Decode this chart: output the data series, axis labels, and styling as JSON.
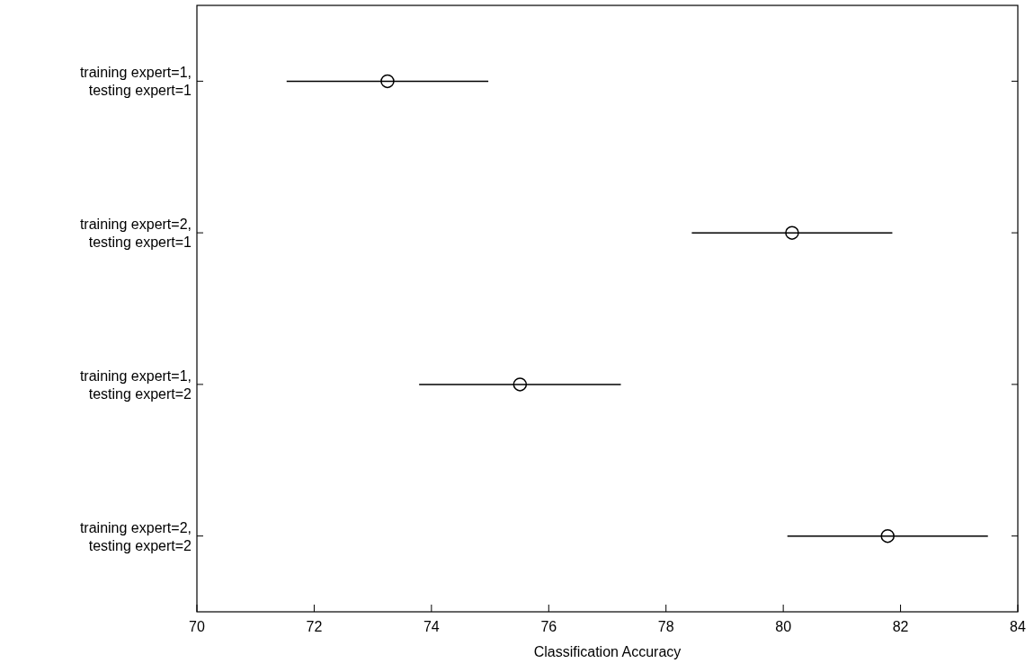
{
  "chart_data": {
    "type": "scatter",
    "orientation": "horizontal",
    "xlabel": "Classification Accuracy",
    "categories": [
      "training expert=1,\ntesting expert=1",
      "training expert=2,\ntesting expert=1",
      "training expert=1,\ntesting expert=2",
      "training expert=2,\ntesting expert=2"
    ],
    "values": [
      73.25,
      80.15,
      75.51,
      81.78
    ],
    "errors": [
      1.72,
      1.71,
      1.72,
      1.71
    ],
    "color": "#000000",
    "marker": "circle",
    "grid": false,
    "xlim": [
      70,
      84
    ],
    "xticks": [
      70,
      72,
      74,
      76,
      78,
      80,
      82,
      84
    ]
  }
}
